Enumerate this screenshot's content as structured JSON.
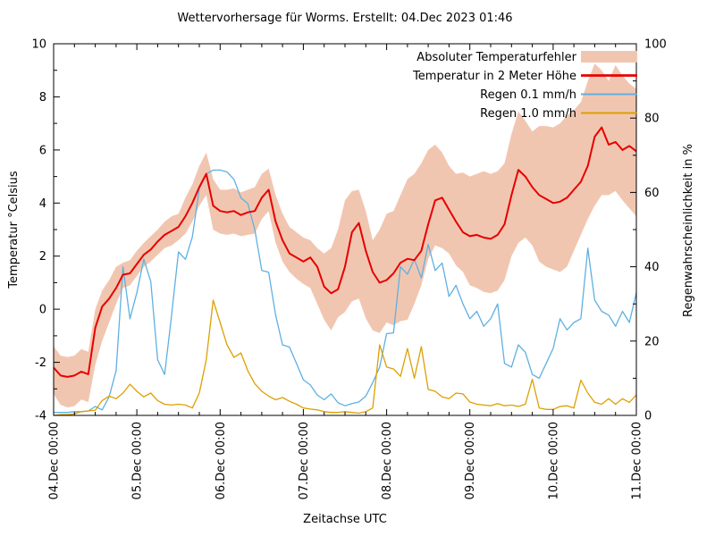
{
  "colors": {
    "background": "#ffffff",
    "axis": "#000000",
    "error_band": "#f1c6b0",
    "temperature": "#e60000",
    "rain01": "#5fb0e2",
    "rain10": "#dda000"
  },
  "chart_data": {
    "type": "line",
    "title": "Wettervorhersage für Worms. Erstellt: 04.Dec 2023 01:46",
    "x_label": "Zeitachse UTC",
    "grid": false,
    "legend_position": "top-right-inside",
    "y_left": {
      "label": "Temperatur °Celsius",
      "min": -4,
      "max": 10,
      "ticks": [
        -4,
        -2,
        0,
        2,
        4,
        6,
        8,
        10
      ],
      "minor_ticks": [
        -3,
        -1,
        1,
        3,
        5,
        7,
        9
      ]
    },
    "y_right": {
      "label": "Regenwahrscheinlichkeit in %",
      "min": 0,
      "max": 100,
      "ticks": [
        0,
        20,
        40,
        60,
        80,
        100
      ],
      "minor_ticks": [
        10,
        30,
        50,
        70,
        90
      ]
    },
    "x_axis": {
      "tick_labels": [
        "04.Dec 00:00",
        "05.Dec 00:00",
        "06.Dec 00:00",
        "07.Dec 00:00",
        "08.Dec 00:00",
        "09.Dec 00:00",
        "10.Dec 00:00",
        "11.Dec 00:00"
      ],
      "major_step_hours": 24,
      "minor_step_hours": 6,
      "total_hours": 168
    },
    "sample_step_hours": 2,
    "series": [
      {
        "name": "Absoluter Temperaturfehler",
        "type": "band",
        "axis": "left",
        "color_key": "error_band",
        "upper": [
          -1.4,
          -1.75,
          -1.8,
          -1.75,
          -1.5,
          -1.6,
          0.0,
          0.7,
          1.1,
          1.6,
          1.75,
          1.85,
          2.2,
          2.5,
          2.75,
          3.0,
          3.3,
          3.5,
          3.6,
          4.2,
          4.7,
          5.4,
          5.9,
          4.9,
          4.5,
          4.5,
          4.55,
          4.4,
          4.5,
          4.6,
          5.1,
          5.3,
          4.3,
          3.6,
          3.1,
          2.9,
          2.7,
          2.6,
          2.3,
          2.1,
          2.3,
          3.0,
          4.1,
          4.45,
          4.5,
          3.7,
          2.6,
          3.0,
          3.6,
          3.7,
          4.3,
          4.9,
          5.1,
          5.5,
          6.0,
          6.2,
          5.9,
          5.4,
          5.1,
          5.15,
          5.0,
          5.1,
          5.2,
          5.1,
          5.2,
          5.5,
          6.6,
          7.45,
          7.1,
          6.7,
          6.9,
          6.9,
          6.85,
          7.0,
          7.3,
          7.5,
          7.8,
          8.6,
          9.25,
          9.0,
          8.6,
          9.2,
          8.8,
          8.5,
          8.3
        ],
        "lower": [
          -3.2,
          -3.6,
          -3.7,
          -3.65,
          -3.4,
          -3.5,
          -2.1,
          -1.2,
          -0.5,
          0.2,
          0.8,
          0.9,
          1.25,
          1.6,
          1.8,
          2.05,
          2.3,
          2.4,
          2.6,
          2.85,
          3.3,
          3.9,
          4.3,
          3.0,
          2.85,
          2.8,
          2.85,
          2.75,
          2.8,
          2.85,
          3.4,
          3.7,
          2.5,
          1.8,
          1.4,
          1.15,
          0.95,
          0.8,
          0.2,
          -0.4,
          -0.8,
          -0.3,
          -0.1,
          0.3,
          0.4,
          -0.35,
          -0.8,
          -0.9,
          -0.5,
          -0.6,
          -0.45,
          -0.4,
          0.2,
          0.9,
          1.9,
          2.4,
          2.3,
          2.1,
          1.65,
          1.4,
          0.9,
          0.8,
          0.65,
          0.6,
          0.7,
          1.1,
          2.0,
          2.5,
          2.7,
          2.4,
          1.8,
          1.6,
          1.5,
          1.4,
          1.6,
          2.2,
          2.8,
          3.4,
          3.9,
          4.3,
          4.3,
          4.45,
          4.1,
          3.8,
          3.5
        ]
      },
      {
        "name": "Temperatur in 2 Meter Höhe",
        "type": "line",
        "axis": "left",
        "color_key": "temperature",
        "width": 2,
        "values": [
          -2.2,
          -2.5,
          -2.55,
          -2.5,
          -2.35,
          -2.45,
          -0.7,
          0.1,
          0.4,
          0.8,
          1.3,
          1.35,
          1.7,
          2.05,
          2.25,
          2.55,
          2.8,
          2.95,
          3.1,
          3.5,
          4.0,
          4.6,
          5.1,
          3.9,
          3.7,
          3.65,
          3.7,
          3.55,
          3.65,
          3.7,
          4.2,
          4.5,
          3.3,
          2.6,
          2.1,
          1.95,
          1.8,
          1.95,
          1.6,
          0.85,
          0.6,
          0.75,
          1.6,
          2.9,
          3.25,
          2.2,
          1.4,
          1.0,
          1.1,
          1.35,
          1.75,
          1.9,
          1.85,
          2.2,
          3.2,
          4.1,
          4.2,
          3.75,
          3.3,
          2.9,
          2.75,
          2.8,
          2.7,
          2.65,
          2.8,
          3.2,
          4.3,
          5.25,
          5.0,
          4.6,
          4.3,
          4.15,
          4.0,
          4.05,
          4.2,
          4.5,
          4.8,
          5.4,
          6.5,
          6.85,
          6.2,
          6.3,
          6.0,
          6.15,
          5.95
        ]
      },
      {
        "name": "Regen 0.1 mm/h",
        "type": "line",
        "axis": "right",
        "color_key": "rain01",
        "width": 1.3,
        "values": [
          0.8,
          0.8,
          0.8,
          1.0,
          1.0,
          1.2,
          2.4,
          1.5,
          5,
          12,
          40,
          26,
          33,
          42,
          36,
          15,
          11,
          27,
          44,
          42,
          48,
          61,
          65,
          66,
          66,
          65.5,
          63.5,
          58.5,
          57,
          50,
          39,
          38.5,
          27,
          19,
          18.4,
          14,
          9.6,
          8.2,
          5.5,
          4.2,
          5.8,
          3.4,
          2.6,
          3.2,
          3.6,
          5.2,
          8.8,
          13,
          22,
          22.2,
          40,
          38,
          42,
          37,
          46,
          39,
          41,
          32,
          35,
          30,
          26,
          28,
          24,
          26,
          30,
          14,
          13,
          19,
          17,
          11,
          10,
          14,
          18,
          26,
          23,
          25,
          26,
          45,
          31,
          28,
          27,
          24,
          28,
          25,
          33
        ]
      },
      {
        "name": "Regen 1.0 mm/h",
        "type": "line",
        "axis": "right",
        "color_key": "rain10",
        "width": 1.3,
        "values": [
          0,
          0.2,
          0.2,
          0.4,
          1.0,
          1.2,
          1.4,
          4.0,
          5.2,
          4.5,
          6.0,
          8.4,
          6.5,
          5.0,
          6.0,
          4.0,
          3.0,
          2.8,
          3.0,
          2.8,
          2.0,
          6.0,
          15,
          31,
          25,
          19,
          15.6,
          16.8,
          12,
          8.5,
          6.5,
          5.2,
          4.2,
          4.8,
          3.8,
          3.0,
          2.0,
          1.7,
          1.5,
          1.0,
          0.8,
          0.8,
          1.0,
          0.8,
          0.6,
          1.0,
          2.0,
          19,
          13,
          12.5,
          10.5,
          18,
          10,
          18.5,
          7,
          6.5,
          5,
          4.5,
          6,
          5.8,
          3.6,
          3.0,
          2.8,
          2.6,
          3.2,
          2.6,
          2.8,
          2.4,
          3.0,
          9.7,
          2.0,
          1.6,
          1.6,
          2.4,
          2.6,
          2.0,
          9.5,
          6.0,
          3.5,
          3.0,
          4.5,
          3.0,
          4.5,
          3.5,
          5.5
        ]
      }
    ]
  }
}
